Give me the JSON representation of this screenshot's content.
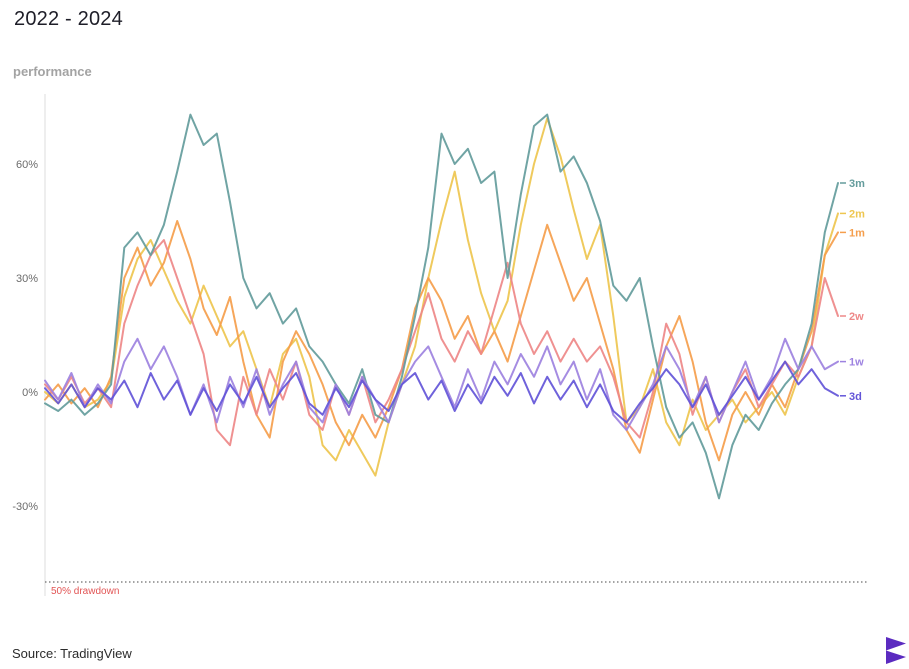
{
  "header": {
    "title": "2022 - 2024",
    "subtitle": "performance"
  },
  "footer": {
    "source": "Source: TradingView"
  },
  "colors": {
    "background": "#ffffff",
    "axis": "#dedede",
    "tick_text": "#6b6b6b",
    "drawdown_line": "#4a4a4a",
    "drawdown_text": "#e25555",
    "logo": "#5b2bc0"
  },
  "chart_data": {
    "type": "line",
    "title": "2022 - 2024",
    "ylabel": "performance",
    "xlabel": "",
    "x_range": [
      "2022",
      "2024"
    ],
    "grid": false,
    "legend_position": "right-end-labels",
    "ylim": [
      -55,
      80
    ],
    "y_ticks": [
      60,
      30,
      0,
      -30
    ],
    "y_tick_labels": [
      "60%",
      "30%",
      "0%",
      "-30%"
    ],
    "annotation": {
      "label": "50% drawdown",
      "y": -50,
      "style": "dotted"
    },
    "series": [
      {
        "name": "3m",
        "color": "#649c9c",
        "values": [
          -3,
          -5,
          -2,
          -6,
          -3,
          2,
          38,
          42,
          36,
          44,
          58,
          73,
          65,
          68,
          50,
          30,
          22,
          26,
          18,
          22,
          12,
          8,
          2,
          -3,
          6,
          -6,
          -8,
          4,
          20,
          38,
          68,
          60,
          64,
          55,
          58,
          30,
          52,
          70,
          73,
          58,
          62,
          55,
          45,
          28,
          24,
          30,
          12,
          -4,
          -12,
          -8,
          -16,
          -28,
          -14,
          -6,
          -10,
          -3,
          2,
          6,
          18,
          42,
          55
        ]
      },
      {
        "name": "2m",
        "color": "#eec64f",
        "values": [
          0,
          -3,
          2,
          -4,
          -2,
          3,
          25,
          35,
          40,
          32,
          24,
          18,
          28,
          20,
          12,
          16,
          6,
          -4,
          10,
          14,
          4,
          -14,
          -18,
          -10,
          -16,
          -22,
          -8,
          2,
          12,
          30,
          45,
          58,
          40,
          26,
          16,
          24,
          44,
          60,
          72,
          62,
          48,
          35,
          44,
          20,
          -8,
          -4,
          6,
          -8,
          -14,
          -2,
          -10,
          -6,
          -2,
          -8,
          -4,
          0,
          -6,
          4,
          12,
          36,
          47
        ]
      },
      {
        "name": "1m",
        "color": "#f59e4c",
        "values": [
          -2,
          2,
          -3,
          1,
          -4,
          4,
          30,
          38,
          28,
          34,
          45,
          35,
          22,
          15,
          25,
          8,
          -6,
          -12,
          8,
          16,
          10,
          2,
          -8,
          -14,
          -6,
          -12,
          -4,
          6,
          22,
          30,
          24,
          14,
          20,
          10,
          16,
          8,
          20,
          32,
          44,
          34,
          24,
          30,
          18,
          6,
          -10,
          -16,
          -2,
          12,
          20,
          8,
          -8,
          -18,
          -6,
          0,
          -6,
          2,
          -4,
          6,
          16,
          36,
          42
        ]
      },
      {
        "name": "2w",
        "color": "#ee8888",
        "values": [
          2,
          -2,
          4,
          -3,
          1,
          -4,
          18,
          28,
          36,
          40,
          30,
          20,
          10,
          -10,
          -14,
          4,
          -6,
          6,
          -2,
          8,
          -6,
          -10,
          2,
          -6,
          4,
          -8,
          -2,
          6,
          16,
          26,
          14,
          8,
          16,
          10,
          22,
          34,
          18,
          10,
          16,
          8,
          14,
          8,
          12,
          4,
          -8,
          -12,
          0,
          18,
          10,
          -6,
          4,
          -8,
          0,
          6,
          -4,
          2,
          8,
          4,
          12,
          30,
          20
        ]
      },
      {
        "name": "1w",
        "color": "#9d82e0",
        "values": [
          3,
          -2,
          5,
          -4,
          2,
          -3,
          8,
          14,
          6,
          12,
          4,
          -6,
          2,
          -8,
          4,
          -4,
          6,
          -6,
          2,
          8,
          -4,
          -8,
          2,
          -6,
          4,
          -2,
          -8,
          2,
          8,
          12,
          4,
          -4,
          6,
          -2,
          8,
          2,
          10,
          4,
          12,
          2,
          8,
          -2,
          6,
          -6,
          -10,
          -4,
          2,
          12,
          6,
          -4,
          4,
          -8,
          0,
          8,
          -2,
          4,
          14,
          6,
          12,
          6,
          8
        ]
      },
      {
        "name": "3d",
        "color": "#6355d8",
        "values": [
          1,
          -3,
          2,
          -4,
          1,
          -2,
          3,
          -4,
          5,
          -2,
          3,
          -6,
          1,
          -5,
          2,
          -3,
          4,
          -4,
          1,
          5,
          -3,
          -6,
          1,
          -4,
          3,
          -2,
          -5,
          2,
          5,
          -2,
          3,
          -5,
          2,
          -3,
          4,
          -1,
          5,
          -3,
          4,
          -2,
          3,
          -4,
          2,
          -5,
          -8,
          -3,
          1,
          6,
          2,
          -4,
          2,
          -6,
          -1,
          4,
          -2,
          3,
          8,
          2,
          6,
          1,
          -1
        ]
      }
    ]
  }
}
